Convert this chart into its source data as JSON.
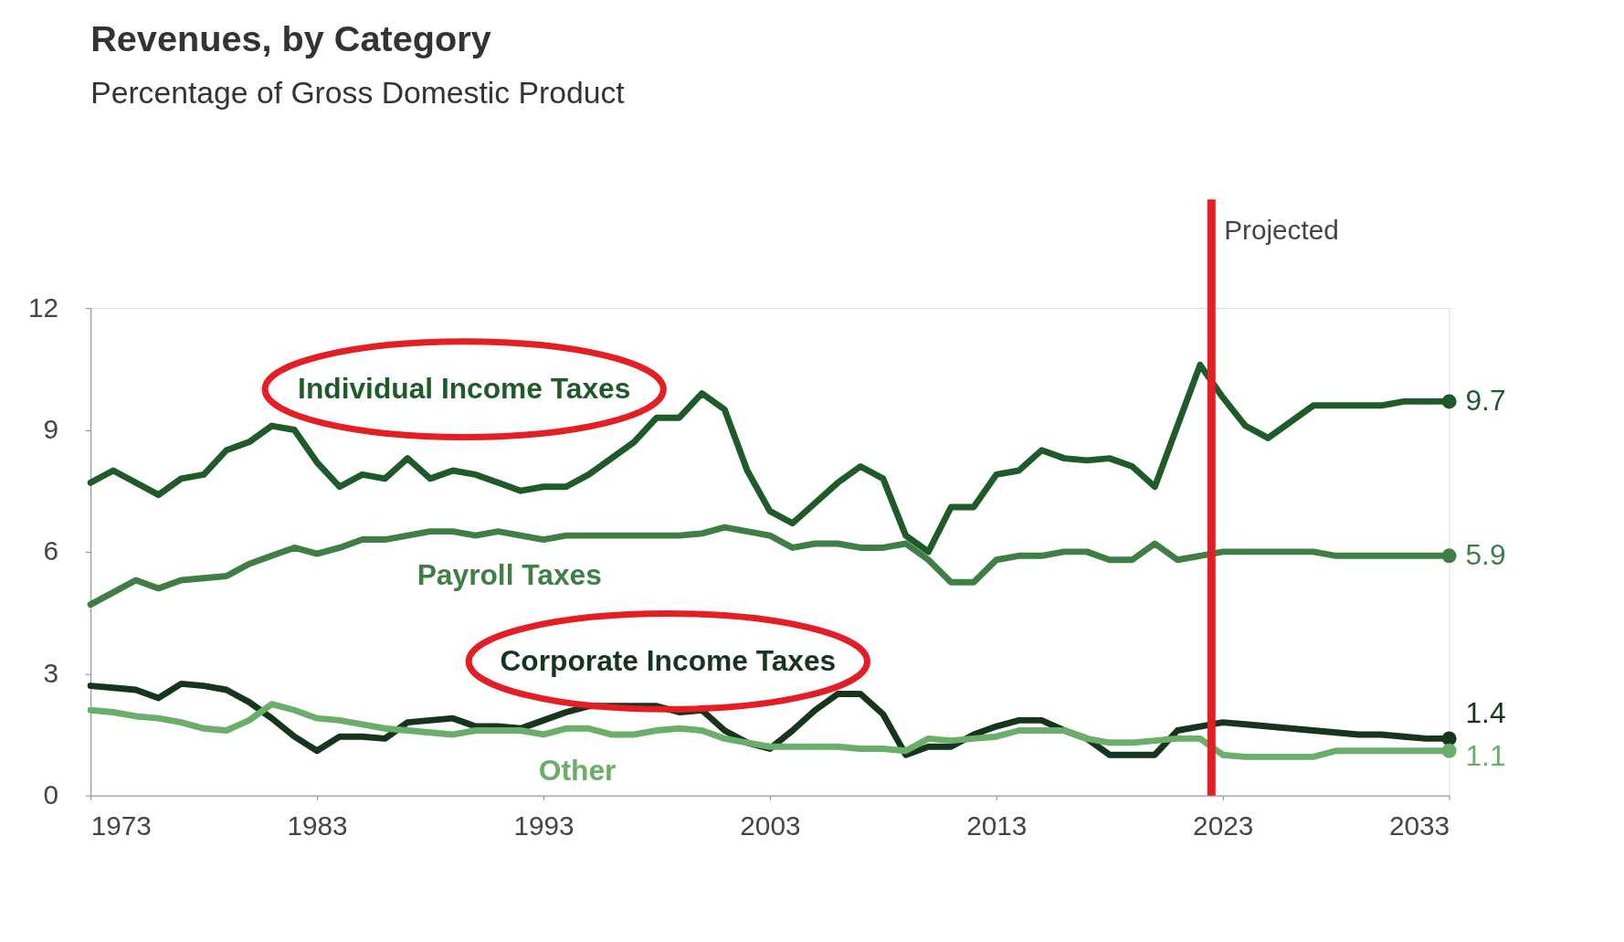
{
  "chart_data": {
    "type": "line",
    "title": "Revenues, by Category",
    "subtitle": "Percentage of Gross Domestic Product",
    "x": [
      1973,
      1974,
      1975,
      1976,
      1977,
      1978,
      1979,
      1980,
      1981,
      1982,
      1983,
      1984,
      1985,
      1986,
      1987,
      1988,
      1989,
      1990,
      1991,
      1992,
      1993,
      1994,
      1995,
      1996,
      1997,
      1998,
      1999,
      2000,
      2001,
      2002,
      2003,
      2004,
      2005,
      2006,
      2007,
      2008,
      2009,
      2010,
      2011,
      2012,
      2013,
      2014,
      2015,
      2016,
      2017,
      2018,
      2019,
      2020,
      2021,
      2022,
      2023,
      2024,
      2025,
      2026,
      2027,
      2028,
      2029,
      2030,
      2031,
      2032,
      2033
    ],
    "series": [
      {
        "name": "Individual Income Taxes",
        "color": "#1e5a2a",
        "values": [
          7.7,
          8.0,
          7.7,
          7.4,
          7.8,
          7.9,
          8.5,
          8.7,
          9.1,
          9.0,
          8.2,
          7.6,
          7.9,
          7.8,
          8.3,
          7.8,
          8.0,
          7.9,
          7.7,
          7.5,
          7.6,
          7.6,
          7.9,
          8.3,
          8.7,
          9.3,
          9.3,
          9.9,
          9.5,
          8.0,
          7.0,
          6.7,
          7.2,
          7.7,
          8.1,
          7.8,
          6.4,
          6.0,
          7.1,
          7.1,
          7.9,
          8.0,
          8.5,
          8.3,
          8.25,
          8.3,
          8.1,
          7.6,
          9.1,
          10.6,
          9.8,
          9.1,
          8.8,
          9.2,
          9.6,
          9.6,
          9.6,
          9.6,
          9.7,
          9.7,
          9.7
        ],
        "value_labels": [
          null,
          null,
          null,
          null,
          null,
          null,
          null,
          null,
          null,
          null,
          null,
          null,
          null,
          null,
          null,
          null,
          null,
          null,
          null,
          null,
          null,
          null,
          null,
          null,
          null,
          null,
          null,
          null,
          null,
          null,
          null,
          null,
          null,
          null,
          null,
          null,
          null,
          null,
          null,
          null,
          null,
          null,
          null,
          null,
          null,
          null,
          null,
          null,
          null,
          null,
          null,
          null,
          null,
          null,
          null,
          null,
          null,
          null,
          null,
          null,
          "9.7"
        ]
      },
      {
        "name": "Payroll Taxes",
        "color": "#3f7f45",
        "values": [
          4.7,
          5.0,
          5.3,
          5.1,
          5.3,
          5.35,
          5.4,
          5.7,
          5.9,
          6.1,
          5.95,
          6.1,
          6.3,
          6.3,
          6.4,
          6.5,
          6.5,
          6.4,
          6.5,
          6.4,
          6.3,
          6.4,
          6.4,
          6.4,
          6.4,
          6.4,
          6.4,
          6.45,
          6.6,
          6.5,
          6.4,
          6.1,
          6.2,
          6.2,
          6.1,
          6.1,
          6.2,
          5.8,
          5.25,
          5.25,
          5.8,
          5.9,
          5.9,
          6.0,
          6.0,
          5.8,
          5.8,
          6.2,
          5.8,
          5.9,
          6.0,
          6.0,
          6.0,
          6.0,
          6.0,
          5.9,
          5.9,
          5.9,
          5.9,
          5.9,
          5.9
        ],
        "value_labels": [
          null,
          null,
          null,
          null,
          null,
          null,
          null,
          null,
          null,
          null,
          null,
          null,
          null,
          null,
          null,
          null,
          null,
          null,
          null,
          null,
          null,
          null,
          null,
          null,
          null,
          null,
          null,
          null,
          null,
          null,
          null,
          null,
          null,
          null,
          null,
          null,
          null,
          null,
          null,
          null,
          null,
          null,
          null,
          null,
          null,
          null,
          null,
          null,
          null,
          null,
          null,
          null,
          null,
          null,
          null,
          null,
          null,
          null,
          null,
          null,
          "5.9"
        ]
      },
      {
        "name": "Corporate Income Taxes",
        "color": "#17341c",
        "values": [
          2.7,
          2.65,
          2.6,
          2.4,
          2.75,
          2.7,
          2.6,
          2.3,
          1.9,
          1.45,
          1.1,
          1.45,
          1.45,
          1.4,
          1.8,
          1.85,
          1.9,
          1.7,
          1.7,
          1.65,
          1.85,
          2.05,
          2.2,
          2.2,
          2.2,
          2.2,
          2.05,
          2.1,
          1.6,
          1.3,
          1.15,
          1.6,
          2.1,
          2.5,
          2.5,
          2.0,
          1.0,
          1.2,
          1.2,
          1.5,
          1.7,
          1.85,
          1.85,
          1.6,
          1.4,
          1.0,
          1.0,
          1.0,
          1.6,
          1.7,
          1.8,
          1.75,
          1.7,
          1.65,
          1.6,
          1.55,
          1.5,
          1.5,
          1.45,
          1.4,
          1.4
        ],
        "value_labels": [
          null,
          null,
          null,
          null,
          null,
          null,
          null,
          null,
          null,
          null,
          null,
          null,
          null,
          null,
          null,
          null,
          null,
          null,
          null,
          null,
          null,
          null,
          null,
          null,
          null,
          null,
          null,
          null,
          null,
          null,
          null,
          null,
          null,
          null,
          null,
          null,
          null,
          null,
          null,
          null,
          null,
          null,
          null,
          null,
          null,
          null,
          null,
          null,
          null,
          null,
          null,
          null,
          null,
          null,
          null,
          null,
          null,
          null,
          null,
          null,
          "1.4"
        ]
      },
      {
        "name": "Other",
        "color": "#6aae6a",
        "values": [
          2.1,
          2.05,
          1.95,
          1.9,
          1.8,
          1.65,
          1.6,
          1.85,
          2.25,
          2.1,
          1.9,
          1.85,
          1.75,
          1.65,
          1.6,
          1.55,
          1.5,
          1.6,
          1.6,
          1.6,
          1.5,
          1.65,
          1.65,
          1.5,
          1.5,
          1.6,
          1.65,
          1.6,
          1.4,
          1.3,
          1.2,
          1.2,
          1.2,
          1.2,
          1.15,
          1.15,
          1.1,
          1.4,
          1.35,
          1.4,
          1.45,
          1.6,
          1.6,
          1.6,
          1.4,
          1.3,
          1.3,
          1.35,
          1.4,
          1.4,
          1.0,
          0.95,
          0.95,
          0.95,
          0.95,
          1.1,
          1.1,
          1.1,
          1.1,
          1.1,
          1.1
        ],
        "value_labels": [
          null,
          null,
          null,
          null,
          null,
          null,
          null,
          null,
          null,
          null,
          null,
          null,
          null,
          null,
          null,
          null,
          null,
          null,
          null,
          null,
          null,
          null,
          null,
          null,
          null,
          null,
          null,
          null,
          null,
          null,
          null,
          null,
          null,
          null,
          null,
          null,
          null,
          null,
          null,
          null,
          null,
          null,
          null,
          null,
          null,
          null,
          null,
          null,
          null,
          null,
          null,
          null,
          null,
          null,
          null,
          null,
          null,
          null,
          null,
          null,
          "1.1"
        ]
      }
    ],
    "xlim": [
      1973,
      2033
    ],
    "xticks": [
      1973,
      1983,
      1993,
      2003,
      2013,
      2023,
      2033
    ],
    "ylim": [
      0,
      12
    ],
    "yticks": [
      0,
      3,
      6,
      9,
      12
    ],
    "ref_lines": [
      {
        "axis": "x",
        "value": 2022.5,
        "label": "Projected",
        "color": "#e31e24"
      }
    ],
    "grid": false,
    "line_style": "solid"
  }
}
